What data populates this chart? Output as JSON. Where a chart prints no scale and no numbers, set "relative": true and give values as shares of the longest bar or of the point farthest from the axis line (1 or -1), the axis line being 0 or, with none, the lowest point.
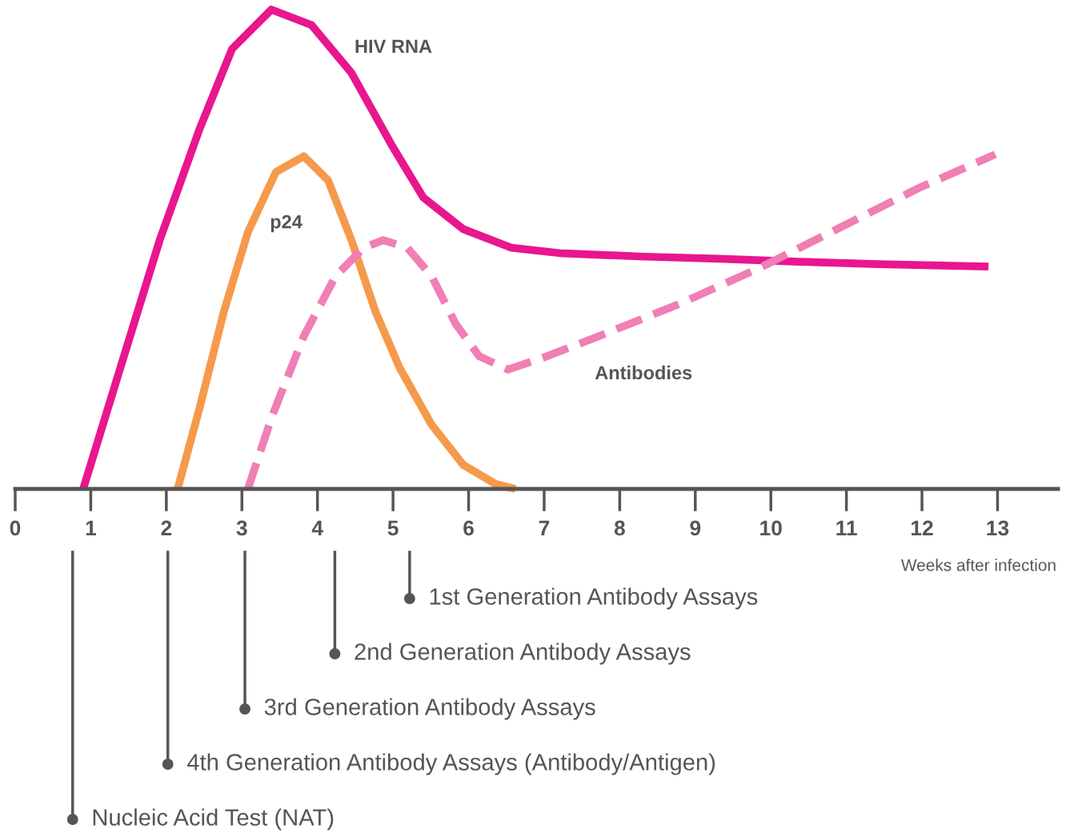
{
  "chart_data": {
    "type": "line",
    "relative": true,
    "xlabel": "Weeks after infection",
    "xlim": [
      0,
      13.8
    ],
    "xticks": [
      0,
      1,
      2,
      3,
      4,
      5,
      6,
      7,
      8,
      9,
      10,
      11,
      12,
      13
    ],
    "grid": false,
    "legend": false,
    "marker": "none",
    "series": [
      {
        "name": "HIV RNA",
        "color": "#e8168f",
        "line_style": "solid",
        "x": [
          0.9,
          1.39,
          1.91,
          2.44,
          2.87,
          3.39,
          3.92,
          4.45,
          4.98,
          5.4,
          5.93,
          6.57,
          7.2,
          8.26,
          9.32,
          10.38,
          11.43,
          12.88
        ],
        "values": [
          0,
          0.252,
          0.518,
          0.751,
          0.918,
          1,
          0.968,
          0.868,
          0.718,
          0.608,
          0.542,
          0.503,
          0.492,
          0.485,
          0.48,
          0.474,
          0.469,
          0.464
        ]
      },
      {
        "name": "p24",
        "color": "#f59a4c",
        "line_style": "solid",
        "x": [
          2.15,
          2.44,
          2.76,
          3.08,
          3.45,
          3.82,
          4.14,
          4.45,
          4.77,
          5.09,
          5.51,
          5.93,
          6.36,
          6.62
        ],
        "values": [
          0,
          0.169,
          0.369,
          0.536,
          0.661,
          0.694,
          0.644,
          0.519,
          0.369,
          0.252,
          0.134,
          0.05,
          0.01,
          0
        ]
      },
      {
        "name": "Antibodies",
        "color": "#ef7fb5",
        "line_style": "dashed",
        "x": [
          3.08,
          3.4,
          3.82,
          4.24,
          4.61,
          4.87,
          5.19,
          5.51,
          5.83,
          6.14,
          6.52,
          6.99,
          7.73,
          8.79,
          9.85,
          10.9,
          11.96,
          12.97
        ],
        "values": [
          0,
          0.152,
          0.319,
          0.444,
          0.503,
          0.519,
          0.503,
          0.444,
          0.344,
          0.277,
          0.249,
          0.274,
          0.319,
          0.386,
          0.461,
          0.544,
          0.628,
          0.698
        ]
      }
    ],
    "ref_lines": [
      {
        "axis": "x",
        "value": 0.76,
        "label": "Nucleic Acid Test (NAT)",
        "color": "#555555"
      },
      {
        "axis": "x",
        "value": 2.02,
        "label": "4th Generation Antibody Assays (Antibody/Antigen)",
        "color": "#555555"
      },
      {
        "axis": "x",
        "value": 3.04,
        "label": "3rd Generation Antibody Assays",
        "color": "#555555"
      },
      {
        "axis": "x",
        "value": 4.23,
        "label": "2nd Generation Antibody Assays",
        "color": "#555555"
      },
      {
        "axis": "x",
        "value": 5.22,
        "label": "1st Generation Antibody Assays",
        "color": "#555555"
      }
    ]
  }
}
